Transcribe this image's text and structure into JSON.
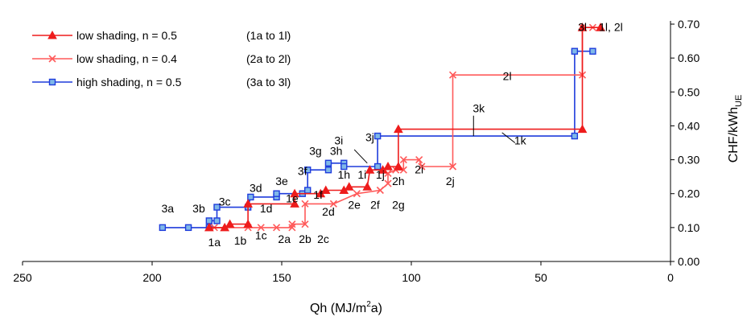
{
  "chart_data": {
    "type": "line",
    "title": "",
    "xlabel_main": "Qh (MJ/m",
    "xlabel_sup": "2",
    "xlabel_end": "a)",
    "ylabel_main": "CHF/kWh",
    "ylabel_sub": "UE",
    "xlim": [
      250,
      0
    ],
    "ylim": [
      0,
      0.7
    ],
    "xticks": [
      "250",
      "200",
      "150",
      "100",
      "50",
      "0"
    ],
    "yticks": [
      "0.00",
      "0.10",
      "0.20",
      "0.30",
      "0.40",
      "0.50",
      "0.60",
      "0.70"
    ],
    "legend_position": "top-left",
    "series": [
      {
        "name": "low shading, n = 0.5",
        "range": "(1a to 1l)",
        "color": "#ee1c1c",
        "marker": "triangle",
        "points": [
          [
            178,
            0.1
          ],
          [
            172,
            0.1
          ],
          [
            170,
            0.11
          ],
          [
            163,
            0.11
          ],
          [
            163,
            0.17
          ],
          [
            145,
            0.17
          ],
          [
            145,
            0.2
          ],
          [
            135,
            0.2
          ],
          [
            133,
            0.21
          ],
          [
            126,
            0.21
          ],
          [
            124,
            0.22
          ],
          [
            117,
            0.22
          ],
          [
            116,
            0.27
          ],
          [
            111,
            0.27
          ],
          [
            109,
            0.28
          ],
          [
            105,
            0.28
          ],
          [
            105,
            0.39
          ],
          [
            34,
            0.39
          ],
          [
            34,
            0.69
          ],
          [
            27,
            0.69
          ]
        ]
      },
      {
        "name": "low shading, n = 0.4",
        "range": "(2a to 2l)",
        "color": "#ff5a5a",
        "marker": "x",
        "points": [
          [
            176,
            0.1
          ],
          [
            163,
            0.1
          ],
          [
            158,
            0.1
          ],
          [
            152,
            0.1
          ],
          [
            146,
            0.1
          ],
          [
            146,
            0.11
          ],
          [
            141,
            0.11
          ],
          [
            141,
            0.17
          ],
          [
            130,
            0.17
          ],
          [
            121,
            0.2
          ],
          [
            112,
            0.21
          ],
          [
            109,
            0.23
          ],
          [
            109,
            0.26
          ],
          [
            106,
            0.27
          ],
          [
            103,
            0.27
          ],
          [
            103,
            0.3
          ],
          [
            97,
            0.3
          ],
          [
            96,
            0.28
          ],
          [
            84,
            0.28
          ],
          [
            84,
            0.55
          ],
          [
            34,
            0.55
          ],
          [
            34,
            0.69
          ],
          [
            30,
            0.69
          ]
        ]
      },
      {
        "name": "high shading, n = 0.5",
        "range": "(3a to 3l)",
        "color": "#1e3cdc",
        "marker": "square",
        "points": [
          [
            196,
            0.1
          ],
          [
            186,
            0.1
          ],
          [
            178,
            0.1
          ],
          [
            178,
            0.12
          ],
          [
            175,
            0.12
          ],
          [
            175,
            0.16
          ],
          [
            163,
            0.16
          ],
          [
            162,
            0.19
          ],
          [
            152,
            0.19
          ],
          [
            152,
            0.2
          ],
          [
            142,
            0.2
          ],
          [
            140,
            0.21
          ],
          [
            140,
            0.27
          ],
          [
            132,
            0.27
          ],
          [
            132,
            0.29
          ],
          [
            126,
            0.29
          ],
          [
            126,
            0.28
          ],
          [
            113,
            0.28
          ],
          [
            113,
            0.37
          ],
          [
            37,
            0.37
          ],
          [
            37,
            0.62
          ],
          [
            30,
            0.62
          ]
        ]
      }
    ],
    "point_labels": [
      {
        "text": "3a",
        "at": [
          194,
          0.145
        ]
      },
      {
        "text": "3b",
        "at": [
          182,
          0.145
        ]
      },
      {
        "text": "3c",
        "at": [
          172,
          0.165
        ]
      },
      {
        "text": "3d",
        "at": [
          160,
          0.205
        ]
      },
      {
        "text": "3e",
        "at": [
          150,
          0.225
        ]
      },
      {
        "text": "3f",
        "at": [
          142,
          0.255
        ]
      },
      {
        "text": "3g",
        "at": [
          137,
          0.315
        ]
      },
      {
        "text": "3h",
        "at": [
          129,
          0.315
        ]
      },
      {
        "text": "3i",
        "at": [
          128,
          0.345
        ]
      },
      {
        "text": "3j",
        "at": [
          116,
          0.355
        ]
      },
      {
        "text": "3k",
        "at": [
          74,
          0.44
        ]
      },
      {
        "text": "3l",
        "at": [
          34,
          0.68
        ]
      },
      {
        "text": "1l, 2l",
        "at": [
          23,
          0.68
        ]
      },
      {
        "text": "1a",
        "at": [
          176,
          0.045
        ]
      },
      {
        "text": "1b",
        "at": [
          166,
          0.05
        ]
      },
      {
        "text": "1c",
        "at": [
          158,
          0.065
        ]
      },
      {
        "text": "2a",
        "at": [
          149,
          0.055
        ]
      },
      {
        "text": "2b",
        "at": [
          141,
          0.055
        ]
      },
      {
        "text": "2c",
        "at": [
          134,
          0.055
        ]
      },
      {
        "text": "1d",
        "at": [
          156,
          0.145
        ]
      },
      {
        "text": "1e",
        "at": [
          146,
          0.175
        ]
      },
      {
        "text": "1f",
        "at": [
          136,
          0.185
        ]
      },
      {
        "text": "2d",
        "at": [
          132,
          0.135
        ]
      },
      {
        "text": "2e",
        "at": [
          122,
          0.155
        ]
      },
      {
        "text": "2f",
        "at": [
          114,
          0.155
        ]
      },
      {
        "text": "2g",
        "at": [
          105,
          0.155
        ]
      },
      {
        "text": "1h",
        "at": [
          126,
          0.245
        ]
      },
      {
        "text": "1i",
        "at": [
          119,
          0.245
        ]
      },
      {
        "text": "2h",
        "at": [
          105,
          0.225
        ]
      },
      {
        "text": "2i",
        "at": [
          97,
          0.26
        ]
      },
      {
        "text": "2j",
        "at": [
          85,
          0.225
        ]
      },
      {
        "text": "1j",
        "at": [
          112,
          0.245
        ]
      },
      {
        "text": "2l",
        "at": [
          63,
          0.535
        ]
      },
      {
        "text": "1k",
        "at": [
          58,
          0.345
        ]
      }
    ],
    "leader_lines": [
      {
        "from": [
          76,
          0.43
        ],
        "to": [
          76,
          0.37
        ]
      },
      {
        "from": [
          65,
          0.38
        ],
        "to": [
          60,
          0.35
        ]
      },
      {
        "from": [
          122,
          0.33
        ],
        "to": [
          117,
          0.29
        ]
      }
    ]
  }
}
